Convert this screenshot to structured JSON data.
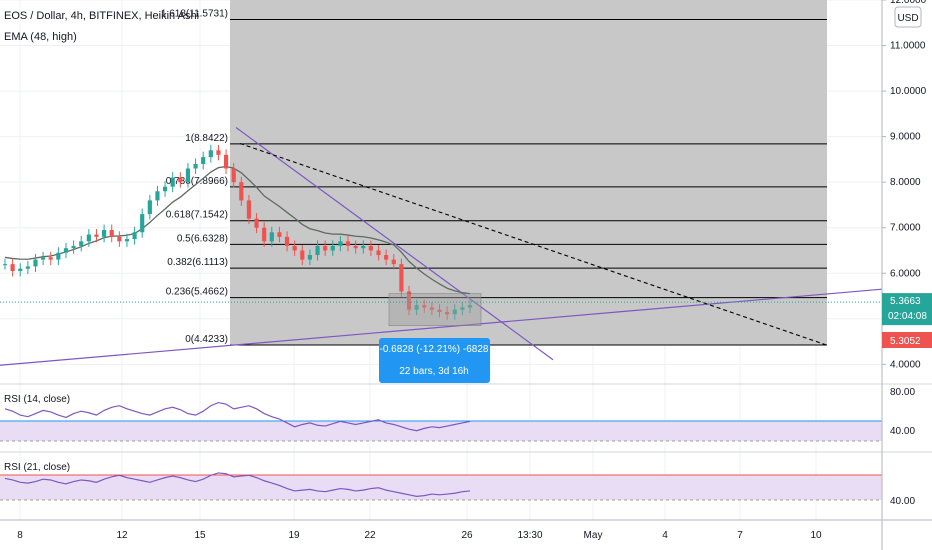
{
  "header": {
    "symbol_title": "EOS / Dollar, 4h, BITFINEX, Heikin Ashi",
    "ema_label": "EMA (48, high)",
    "currency_badge": "USD"
  },
  "colors": {
    "up": "#26a69a",
    "down": "#ef5350",
    "fib_zone": "#c8c8c8",
    "trendline": "#7e57c2",
    "ema": "#5d6d5d",
    "rsi_band": "#e9dcf5",
    "rsi_line": "#7e57c2",
    "price_badge": "#26a69a",
    "low_badge": "#ef5350",
    "measure_box": "#2196f3"
  },
  "chart_data": [
    {
      "type": "candlestick",
      "title": "EOS / Dollar, 4h, BITFINEX, Heikin Ashi",
      "ylim": [
        3.7,
        12.0
      ],
      "y_ticks": [
        "12.0000",
        "11.0000",
        "10.0000",
        "9.0000",
        "8.0000",
        "7.0000",
        "6.0000",
        "5.0000",
        "4.0000"
      ],
      "x_ticks": [
        "8",
        "12",
        "15",
        "19",
        "22",
        "26",
        "13:30",
        "May",
        "4",
        "7",
        "10"
      ],
      "candles": {
        "values": [
          6.2,
          6.05,
          6.1,
          6.15,
          6.3,
          6.35,
          6.3,
          6.45,
          6.55,
          6.6,
          6.7,
          6.85,
          6.8,
          6.95,
          6.8,
          6.7,
          6.75,
          6.9,
          7.3,
          7.6,
          7.8,
          7.9,
          8.1,
          8.0,
          8.3,
          8.4,
          8.55,
          8.7,
          8.6,
          8.3,
          8.0,
          7.6,
          7.2,
          7.0,
          6.7,
          6.9,
          6.8,
          6.6,
          6.5,
          6.3,
          6.4,
          6.6,
          6.5,
          6.6,
          6.7,
          6.6,
          6.55,
          6.6,
          6.5,
          6.4,
          6.3,
          6.2,
          5.6,
          5.2,
          5.3,
          5.25,
          5.2,
          5.15,
          5.1,
          5.2,
          5.25,
          5.3
        ]
      },
      "fib_levels": [
        {
          "label": "1.618(11.5731)",
          "value": 11.5731
        },
        {
          "label": "1(8.8422)",
          "value": 8.8422
        },
        {
          "label": "0.786(7.8966)",
          "value": 7.8966
        },
        {
          "label": "0.618(7.1542)",
          "value": 7.1542
        },
        {
          "label": "0.5(6.6328)",
          "value": 6.6328
        },
        {
          "label": "0.382(6.1113)",
          "value": 6.1113
        },
        {
          "label": "0.236(5.4662)",
          "value": 5.4662
        },
        {
          "label": "0(4.4233)",
          "value": 4.4233
        }
      ],
      "price_badges": {
        "last_price": "5.3663",
        "countdown": "02:04:08",
        "low_price": "5.3052"
      },
      "measure": {
        "change_text": "-0.6828 (-12.21%) -6828",
        "bars_text": "22 bars, 3d 16h"
      }
    },
    {
      "type": "line",
      "title": "RSI (14, close)",
      "y_ticks": [
        "80.00",
        "40.00"
      ],
      "values": [
        58,
        55,
        50,
        48,
        52,
        56,
        54,
        50,
        47,
        52,
        55,
        53,
        50,
        56,
        60,
        62,
        58,
        55,
        52,
        50,
        54,
        58,
        60,
        57,
        52,
        50,
        55,
        62,
        66,
        64,
        58,
        60,
        62,
        58,
        52,
        48,
        45,
        40,
        35,
        38,
        40,
        37,
        36,
        39,
        42,
        40,
        38,
        40,
        42,
        44,
        40,
        38,
        35,
        32,
        30,
        33,
        35,
        34,
        36,
        38,
        40,
        42
      ]
    },
    {
      "type": "line",
      "title": "RSI (21, close)",
      "y_ticks": [
        "40.00"
      ],
      "values": [
        56,
        54,
        51,
        50,
        52,
        55,
        54,
        51,
        49,
        52,
        54,
        53,
        51,
        55,
        58,
        60,
        57,
        55,
        53,
        51,
        54,
        57,
        59,
        57,
        54,
        52,
        55,
        60,
        63,
        62,
        58,
        59,
        60,
        57,
        53,
        50,
        47,
        43,
        40,
        41,
        42,
        40,
        39,
        41,
        43,
        42,
        40,
        41,
        43,
        44,
        41,
        39,
        37,
        35,
        33,
        34,
        36,
        35,
        36,
        37,
        39,
        40
      ]
    }
  ]
}
